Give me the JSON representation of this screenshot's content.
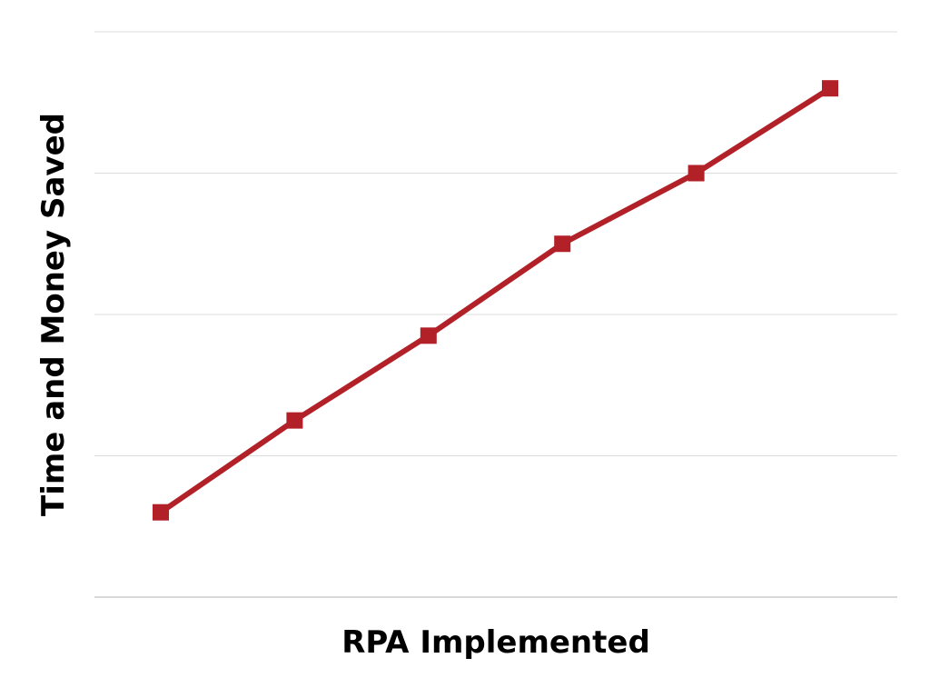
{
  "chart_data": {
    "type": "line",
    "title": "",
    "xlabel": "RPA Implemented",
    "ylabel": "Time and Money Saved",
    "x": [
      1,
      2,
      3,
      4,
      5,
      6
    ],
    "ylim": [
      0,
      4
    ],
    "grid": true,
    "legend": "none",
    "series": [
      {
        "values": [
          0.6,
          1.25,
          1.85,
          2.5,
          3.0,
          3.6
        ],
        "color": "#b22028",
        "marker": "square"
      }
    ]
  },
  "colors": {
    "line": "#b22028",
    "grid": "#dddddd",
    "axis_text": "#000000"
  }
}
